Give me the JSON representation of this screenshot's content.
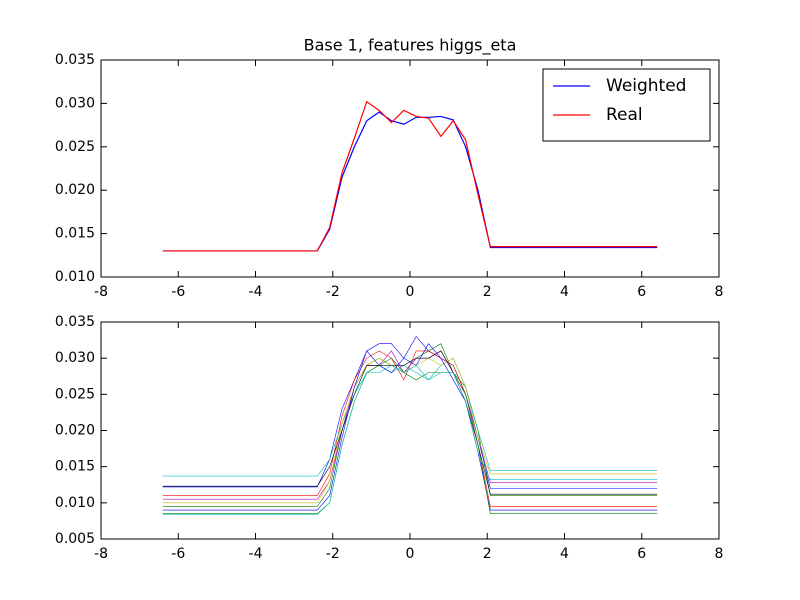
{
  "chart_data": [
    {
      "type": "line",
      "title": "Base 1, features higgs_eta",
      "legend": "upper right",
      "x": [
        -6.4,
        -2.4,
        -2.08,
        -1.76,
        -1.44,
        -1.12,
        -0.8,
        -0.48,
        -0.16,
        0.16,
        0.48,
        0.8,
        1.12,
        1.44,
        1.76,
        2.08,
        6.4
      ],
      "series": [
        {
          "name": "Weighted",
          "color": "#0000ff",
          "values": [
            0.013,
            0.013,
            0.0155,
            0.0215,
            0.025,
            0.028,
            0.029,
            0.028,
            0.0276,
            0.0284,
            0.0284,
            0.0285,
            0.0281,
            0.025,
            0.02,
            0.0134,
            0.0134
          ]
        },
        {
          "name": "Real",
          "color": "#ff0000",
          "values": [
            0.013,
            0.013,
            0.0157,
            0.022,
            0.026,
            0.0302,
            0.0292,
            0.0278,
            0.0292,
            0.0285,
            0.0283,
            0.0262,
            0.028,
            0.0258,
            0.0195,
            0.0135,
            0.0135
          ]
        }
      ],
      "xlim": [
        -8,
        8
      ],
      "xticks": [
        -8,
        -6,
        -4,
        -2,
        0,
        2,
        4,
        6,
        8
      ],
      "ylim": [
        0.01,
        0.035
      ],
      "yticks": [
        {
          "value": 0.01,
          "label": "0.010"
        },
        0.015,
        {
          "value": 0.02,
          "label": "0.020"
        },
        0.025,
        {
          "value": 0.03,
          "label": "0.030"
        },
        0.035
      ]
    },
    {
      "type": "line",
      "x": [
        -6.4,
        -2.4,
        -2.08,
        -1.76,
        -1.44,
        -1.12,
        -0.8,
        -0.48,
        -0.16,
        0.16,
        0.48,
        0.8,
        1.12,
        1.44,
        1.76,
        2.08,
        6.4
      ],
      "series": [
        {
          "color": "#0000ff",
          "values": [
            0.0122,
            0.0122,
            0.016,
            0.023,
            0.027,
            0.031,
            0.032,
            0.032,
            0.03,
            0.033,
            0.031,
            0.03,
            0.029,
            0.025,
            0.019,
            0.012,
            0.012
          ]
        },
        {
          "color": "#008000",
          "values": [
            0.0095,
            0.0095,
            0.012,
            0.02,
            0.026,
            0.029,
            0.03,
            0.029,
            0.028,
            0.03,
            0.031,
            0.032,
            0.028,
            0.026,
            0.02,
            0.011,
            0.011
          ]
        },
        {
          "color": "#ff0000",
          "values": [
            0.011,
            0.011,
            0.014,
            0.022,
            0.027,
            0.03,
            0.031,
            0.03,
            0.027,
            0.031,
            0.031,
            0.03,
            0.029,
            0.025,
            0.018,
            0.0095,
            0.0095
          ]
        },
        {
          "color": "#00bfbf",
          "values": [
            0.0137,
            0.0137,
            0.016,
            0.021,
            0.025,
            0.028,
            0.029,
            0.028,
            0.029,
            0.028,
            0.027,
            0.029,
            0.03,
            0.026,
            0.02,
            0.0145,
            0.0145
          ]
        },
        {
          "color": "#bf00bf",
          "values": [
            0.0105,
            0.0105,
            0.013,
            0.02,
            0.026,
            0.029,
            0.029,
            0.031,
            0.028,
            0.03,
            0.03,
            0.031,
            0.028,
            0.025,
            0.019,
            0.0128,
            0.0128
          ]
        },
        {
          "color": "#bfbf00",
          "values": [
            0.01,
            0.01,
            0.013,
            0.021,
            0.026,
            0.029,
            0.03,
            0.029,
            0.028,
            0.029,
            0.03,
            0.029,
            0.03,
            0.026,
            0.019,
            0.014,
            0.014
          ]
        },
        {
          "color": "#000000",
          "values": [
            0.0123,
            0.0123,
            0.015,
            0.02,
            0.025,
            0.029,
            0.029,
            0.029,
            0.029,
            0.03,
            0.03,
            0.031,
            0.028,
            0.024,
            0.018,
            0.0112,
            0.0112
          ]
        },
        {
          "color": "#0000ff",
          "values": [
            0.009,
            0.009,
            0.011,
            0.019,
            0.026,
            0.031,
            0.029,
            0.028,
            0.03,
            0.029,
            0.032,
            0.03,
            0.027,
            0.024,
            0.017,
            0.009,
            0.009
          ]
        },
        {
          "color": "#008000",
          "values": [
            0.0085,
            0.0085,
            0.01,
            0.018,
            0.024,
            0.028,
            0.029,
            0.03,
            0.028,
            0.027,
            0.028,
            0.028,
            0.028,
            0.025,
            0.018,
            0.0085,
            0.0085
          ]
        },
        {
          "color": "#00bfbf",
          "values": [
            0.0084,
            0.0084,
            0.01,
            0.018,
            0.024,
            0.028,
            0.028,
            0.029,
            0.028,
            0.029,
            0.027,
            0.028,
            0.028,
            0.024,
            0.017,
            0.0132,
            0.0132
          ]
        }
      ],
      "xlim": [
        -8,
        8
      ],
      "xticks": [
        -8,
        -6,
        -4,
        -2,
        0,
        2,
        4,
        6,
        8
      ],
      "ylim": [
        0.005,
        0.035
      ],
      "yticks": [
        0.005,
        {
          "value": 0.01,
          "label": "0.010"
        },
        0.015,
        {
          "value": 0.02,
          "label": "0.020"
        },
        0.025,
        {
          "value": 0.03,
          "label": "0.030"
        },
        0.035
      ]
    }
  ]
}
